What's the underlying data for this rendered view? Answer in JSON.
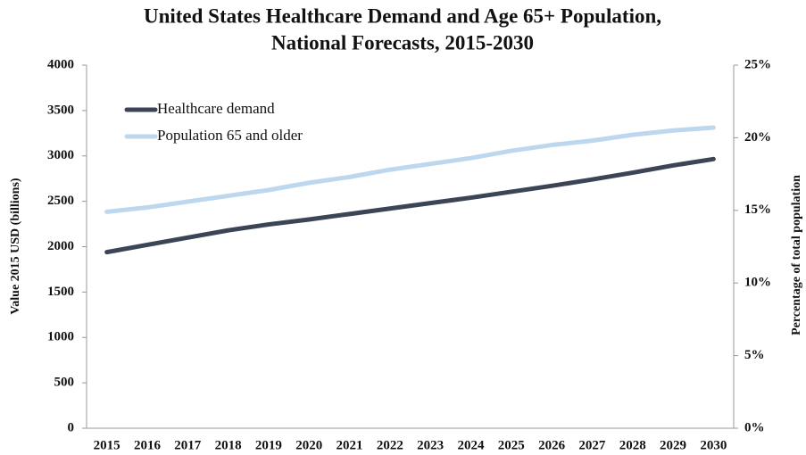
{
  "chart_data": {
    "type": "line",
    "title": [
      "United States Healthcare Demand and Age 65+ Population,",
      "National Forecasts, 2015-2030"
    ],
    "ylabel": "Value 2015 USD (billions)",
    "y2label": "Percentage of total population",
    "categories": [
      "2015",
      "2016",
      "2017",
      "2018",
      "2019",
      "2020",
      "2021",
      "2022",
      "2023",
      "2024",
      "2025",
      "2026",
      "2027",
      "2028",
      "2029",
      "2030"
    ],
    "series": [
      {
        "name": "Healthcare demand",
        "color": "#3b4556",
        "values": [
          1940,
          2020,
          2100,
          2180,
          2245,
          2300,
          2360,
          2420,
          2480,
          2540,
          2605,
          2670,
          2740,
          2815,
          2895,
          2965
        ]
      },
      {
        "name": "Population 65 and older",
        "color": "#bdd7ee",
        "axis": "y2",
        "values": [
          14.9,
          15.2,
          15.6,
          16.0,
          16.4,
          16.9,
          17.3,
          17.8,
          18.2,
          18.6,
          19.1,
          19.5,
          19.8,
          20.2,
          20.5,
          20.7
        ]
      }
    ],
    "ylim": [
      0,
      4000
    ],
    "yticks": [
      0,
      500,
      1000,
      1500,
      2000,
      2500,
      3000,
      3500,
      4000
    ],
    "y2lim": [
      0,
      25
    ],
    "y2ticks": [
      {
        "value": 0,
        "label": "0%"
      },
      {
        "value": 5,
        "label": "5%"
      },
      {
        "value": 10,
        "label": "10%"
      },
      {
        "value": 15,
        "label": "15%"
      },
      {
        "value": 20,
        "label": "20%"
      },
      {
        "value": 25,
        "label": "25%"
      }
    ],
    "grid": false,
    "legend": "upper left"
  }
}
